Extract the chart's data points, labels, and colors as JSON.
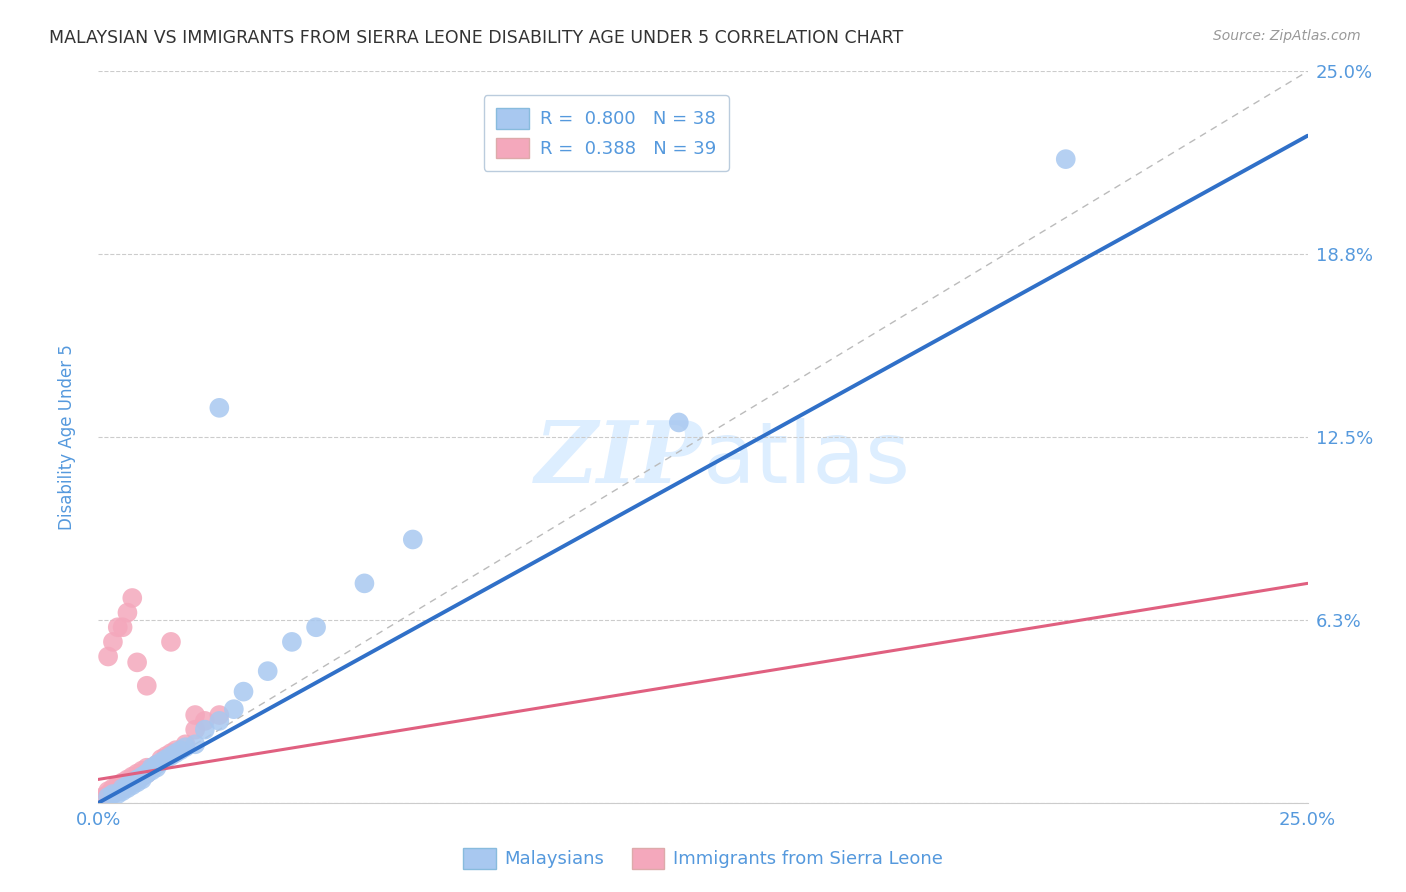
{
  "title": "MALAYSIAN VS IMMIGRANTS FROM SIERRA LEONE DISABILITY AGE UNDER 5 CORRELATION CHART",
  "source": "Source: ZipAtlas.com",
  "ylabel": "Disability Age Under 5",
  "xlim": [
    0,
    0.25
  ],
  "ylim": [
    0,
    0.25
  ],
  "blue_R": 0.8,
  "blue_N": 38,
  "pink_R": 0.388,
  "pink_N": 39,
  "blue_color": "#A8C8F0",
  "pink_color": "#F4A8BC",
  "blue_line_color": "#3070C8",
  "pink_line_color": "#E06080",
  "ref_line_color": "#BBBBBB",
  "axis_label_color": "#5599DD",
  "tick_label_color": "#5599DD",
  "title_color": "#333333",
  "watermark_color": "#DDEEFF",
  "background_color": "#FFFFFF",
  "blue_scatter_x": [
    0.002,
    0.003,
    0.004,
    0.005,
    0.005,
    0.006,
    0.006,
    0.007,
    0.007,
    0.008,
    0.008,
    0.009,
    0.009,
    0.01,
    0.01,
    0.011,
    0.011,
    0.012,
    0.012,
    0.013,
    0.014,
    0.015,
    0.016,
    0.017,
    0.018,
    0.02,
    0.022,
    0.025,
    0.028,
    0.03,
    0.035,
    0.04,
    0.055,
    0.065,
    0.12,
    0.2,
    0.025,
    0.045
  ],
  "blue_scatter_y": [
    0.002,
    0.003,
    0.003,
    0.004,
    0.005,
    0.005,
    0.006,
    0.006,
    0.007,
    0.007,
    0.008,
    0.008,
    0.009,
    0.01,
    0.01,
    0.011,
    0.012,
    0.012,
    0.013,
    0.014,
    0.015,
    0.016,
    0.017,
    0.018,
    0.019,
    0.02,
    0.025,
    0.028,
    0.032,
    0.038,
    0.045,
    0.055,
    0.075,
    0.09,
    0.13,
    0.22,
    0.135,
    0.06
  ],
  "pink_scatter_x": [
    0.001,
    0.002,
    0.002,
    0.003,
    0.003,
    0.004,
    0.004,
    0.005,
    0.005,
    0.006,
    0.006,
    0.007,
    0.007,
    0.008,
    0.008,
    0.009,
    0.009,
    0.01,
    0.01,
    0.011,
    0.012,
    0.013,
    0.014,
    0.015,
    0.016,
    0.018,
    0.02,
    0.022,
    0.025,
    0.002,
    0.003,
    0.004,
    0.005,
    0.006,
    0.007,
    0.008,
    0.01,
    0.015,
    0.02
  ],
  "pink_scatter_y": [
    0.002,
    0.003,
    0.004,
    0.003,
    0.005,
    0.004,
    0.006,
    0.005,
    0.007,
    0.006,
    0.008,
    0.007,
    0.009,
    0.008,
    0.01,
    0.009,
    0.011,
    0.01,
    0.012,
    0.012,
    0.013,
    0.015,
    0.016,
    0.017,
    0.018,
    0.02,
    0.025,
    0.028,
    0.03,
    0.05,
    0.055,
    0.06,
    0.06,
    0.065,
    0.07,
    0.048,
    0.04,
    0.055,
    0.03
  ],
  "blue_line_x0": 0.0,
  "blue_line_y0": 0.0,
  "blue_line_x1": 0.25,
  "blue_line_y1": 0.228,
  "pink_line_x0": 0.0,
  "pink_line_y0": 0.008,
  "pink_line_x1": 0.25,
  "pink_line_y1": 0.075
}
